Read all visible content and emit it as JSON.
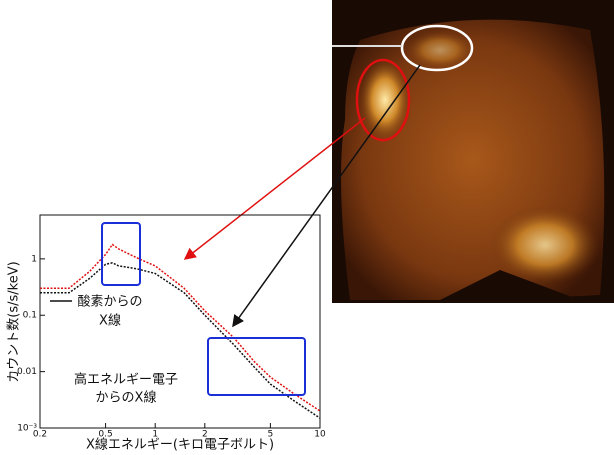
{
  "chart_data": {
    "type": "line",
    "xlabel": "X線エネルギー(キロ電子ボルト)",
    "ylabel": "カウント数(s/s/keV)",
    "xscale": "log",
    "yscale": "log",
    "xlim": [
      0.2,
      10
    ],
    "ylim": [
      0.001,
      6
    ],
    "xticks": [
      0.2,
      0.5,
      1,
      2,
      5,
      10
    ],
    "yticks": [
      {
        "value": 0.001,
        "label": "10⁻³"
      },
      0.01,
      0.1,
      1
    ],
    "x": [
      0.2,
      0.3,
      0.4,
      0.5,
      0.55,
      0.6,
      0.7,
      0.8,
      1,
      1.5,
      2,
      3,
      4,
      5,
      7,
      10
    ],
    "series": [
      {
        "color": "#e01010",
        "values": [
          0.3,
          0.3,
          0.6,
          1.2,
          1.8,
          1.5,
          1.2,
          1.0,
          0.75,
          0.3,
          0.12,
          0.04,
          0.015,
          0.008,
          0.004,
          0.002
        ]
      },
      {
        "color": "#111111",
        "values": [
          0.25,
          0.25,
          0.45,
          0.8,
          0.85,
          0.75,
          0.7,
          0.65,
          0.55,
          0.25,
          0.1,
          0.03,
          0.012,
          0.006,
          0.003,
          0.0015
        ]
      }
    ],
    "annotations": [
      {
        "lines": [
          "酸素からの",
          "X線"
        ]
      },
      {
        "lines": [
          "高エネルギー電子",
          "からのX線"
        ]
      }
    ]
  }
}
